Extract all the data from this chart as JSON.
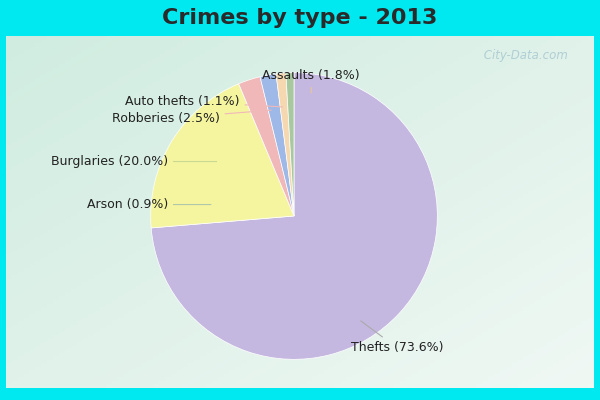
{
  "title": "Crimes by type - 2013",
  "labels": [
    "Thefts",
    "Burglaries",
    "Robberies",
    "Assaults",
    "Auto thefts",
    "Arson"
  ],
  "pct_labels": [
    "Thefts (73.6%)",
    "Burglaries (20.0%)",
    "Robberies (2.5%)",
    "Assaults (1.8%)",
    "Auto thefts (1.1%)",
    "Arson (0.9%)"
  ],
  "values": [
    73.6,
    20.0,
    2.5,
    1.8,
    1.1,
    0.9
  ],
  "colors": [
    "#c5b8e0",
    "#f5f5a0",
    "#f0b8b8",
    "#9eb8e8",
    "#f5d8b0",
    "#a8c8a0"
  ],
  "bg_cyan": "#00e8f0",
  "bg_grad_top": "#d8f0e8",
  "bg_grad_bottom": "#c8e0d0",
  "title_color": "#2a2a2a",
  "title_fontsize": 16,
  "label_fontsize": 9,
  "startangle": 90,
  "watermark": " City-Data.com"
}
